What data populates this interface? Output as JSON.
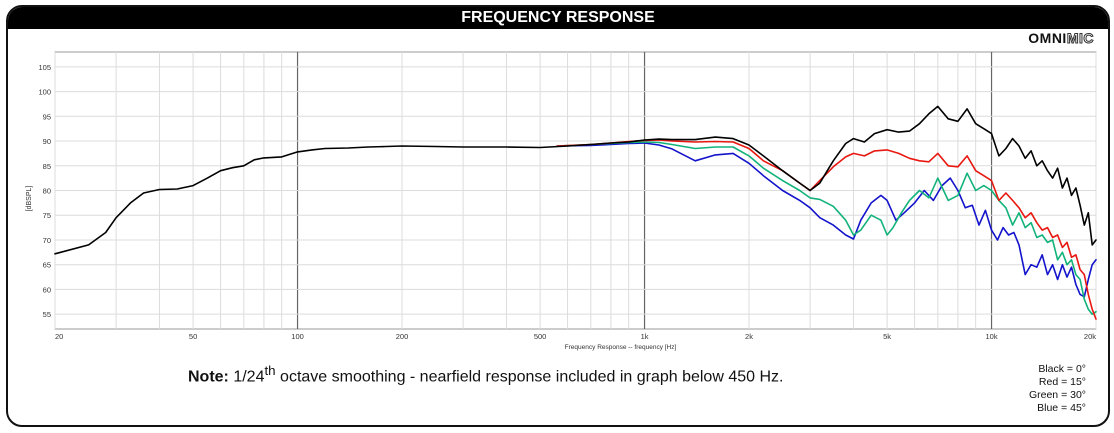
{
  "header": {
    "title": "FREQUENCY RESPONSE"
  },
  "logo": {
    "solid": "OMNI",
    "outline": "MIC"
  },
  "note": {
    "label": "Note:",
    "text_pre": " 1/24",
    "sup": "th",
    "text_post": " octave smoothing - nearfield response included in graph below 450 Hz."
  },
  "legend": [
    {
      "text": "Black = 0°",
      "color": "#000000"
    },
    {
      "text": "Red = 15°",
      "color": "#e8170f"
    },
    {
      "text": "Green = 30°",
      "color": "#12b37a"
    },
    {
      "text": "Blue = 45°",
      "color": "#1313cc"
    }
  ],
  "chart_data": {
    "type": "line",
    "title": "FREQUENCY RESPONSE",
    "xlabel": "Frequency Response -- frequency [Hz]",
    "ylabel": "[dBSPL]",
    "x_scale": "log",
    "xlim": [
      20,
      20000
    ],
    "ylim": [
      52,
      108
    ],
    "x_ticks": [
      {
        "value": 20,
        "label": "20"
      },
      {
        "value": 50,
        "label": "50"
      },
      {
        "value": 100,
        "label": "100"
      },
      {
        "value": 200,
        "label": "200"
      },
      {
        "value": 500,
        "label": "500"
      },
      {
        "value": 1000,
        "label": "1k"
      },
      {
        "value": 2000,
        "label": "2k"
      },
      {
        "value": 5000,
        "label": "5k"
      },
      {
        "value": 10000,
        "label": "10k"
      },
      {
        "value": 20000,
        "label": "20k"
      }
    ],
    "y_ticks": [
      55,
      60,
      65,
      70,
      75,
      80,
      85,
      90,
      95,
      100,
      105
    ],
    "grid": true,
    "series": [
      {
        "name": "Black = 0°",
        "color": "#000000",
        "x": [
          20,
          25,
          28,
          30,
          33,
          36,
          40,
          45,
          50,
          55,
          60,
          65,
          70,
          75,
          80,
          90,
          100,
          110,
          120,
          140,
          160,
          180,
          200,
          250,
          300,
          400,
          500,
          600,
          700,
          800,
          900,
          1000,
          1100,
          1200,
          1400,
          1600,
          1800,
          2000,
          2200,
          2500,
          2800,
          3000,
          3200,
          3500,
          3800,
          4000,
          4300,
          4600,
          5000,
          5400,
          5800,
          6200,
          6600,
          7000,
          7500,
          8000,
          8500,
          9000,
          9500,
          10000,
          10500,
          11000,
          11500,
          12000,
          12500,
          13000,
          13500,
          14000,
          14500,
          15000,
          15500,
          16000,
          16500,
          17000,
          17500,
          18000,
          18500,
          19000,
          19500,
          20000
        ],
        "values": [
          67.2,
          69.0,
          71.5,
          74.5,
          77.5,
          79.5,
          80.2,
          80.3,
          81.0,
          82.5,
          84.0,
          84.6,
          85.0,
          86.2,
          86.6,
          86.8,
          87.8,
          88.2,
          88.5,
          88.6,
          88.8,
          88.9,
          89.0,
          88.9,
          88.8,
          88.8,
          88.7,
          89.0,
          89.3,
          89.6,
          89.8,
          90.2,
          90.4,
          90.3,
          90.3,
          90.8,
          90.5,
          89.2,
          87.0,
          84.0,
          81.5,
          80.0,
          81.5,
          86.0,
          89.5,
          90.5,
          89.8,
          91.5,
          92.3,
          91.8,
          92.0,
          93.5,
          95.5,
          97.0,
          94.5,
          94.0,
          96.5,
          93.5,
          92.5,
          91.5,
          87.0,
          88.5,
          90.5,
          89.0,
          86.5,
          88.0,
          85.0,
          86.0,
          84.0,
          82.5,
          84.5,
          80.5,
          82.5,
          79.0,
          80.5,
          77.0,
          73.0,
          75.5,
          69.0,
          70.0
        ]
      },
      {
        "name": "Red = 15°",
        "color": "#e8170f",
        "x": [
          560,
          700,
          800,
          900,
          1000,
          1100,
          1200,
          1400,
          1600,
          1800,
          2000,
          2200,
          2500,
          2800,
          3000,
          3200,
          3500,
          3800,
          4000,
          4300,
          4600,
          5000,
          5400,
          5800,
          6200,
          6600,
          7000,
          7500,
          8000,
          8500,
          9000,
          9500,
          10000,
          10500,
          11000,
          11500,
          12000,
          12500,
          13000,
          13500,
          14000,
          14500,
          15000,
          15500,
          16000,
          16500,
          17000,
          17500,
          18000,
          18500,
          19000,
          19500,
          20000
        ],
        "values": [
          89.0,
          89.3,
          89.6,
          89.9,
          90.1,
          90.2,
          90.0,
          89.8,
          89.9,
          89.8,
          88.5,
          86.0,
          84.0,
          81.5,
          80.0,
          82.0,
          84.8,
          86.8,
          87.5,
          87.0,
          88.0,
          88.2,
          87.5,
          86.5,
          86.0,
          85.8,
          87.5,
          85.0,
          84.8,
          87.0,
          84.0,
          83.0,
          82.0,
          78.0,
          79.5,
          78.0,
          76.5,
          74.5,
          75.5,
          73.5,
          72.0,
          72.5,
          70.5,
          71.0,
          68.5,
          69.5,
          66.5,
          67.0,
          64.0,
          63.0,
          59.0,
          56.0,
          54.0
        ]
      },
      {
        "name": "Green = 30°",
        "color": "#12b37a",
        "x": [
          560,
          700,
          800,
          900,
          1000,
          1100,
          1200,
          1400,
          1600,
          1800,
          2000,
          2200,
          2500,
          2800,
          3000,
          3200,
          3500,
          3800,
          4000,
          4200,
          4500,
          4800,
          5000,
          5200,
          5500,
          5800,
          6200,
          6600,
          7000,
          7500,
          8000,
          8500,
          9000,
          9500,
          10000,
          10500,
          11000,
          11500,
          12000,
          12500,
          13000,
          13500,
          14000,
          14500,
          15000,
          15500,
          16000,
          16500,
          17000,
          17500,
          18000,
          18500,
          19000,
          19500,
          20000
        ],
        "values": [
          89.0,
          89.3,
          89.5,
          89.7,
          89.8,
          89.7,
          89.3,
          88.5,
          88.8,
          88.8,
          87.0,
          84.5,
          82.0,
          80.0,
          78.5,
          78.2,
          76.8,
          74.0,
          71.0,
          72.0,
          75.0,
          74.0,
          71.0,
          72.5,
          75.5,
          78.0,
          80.0,
          78.5,
          82.5,
          78.0,
          79.0,
          83.5,
          80.0,
          81.0,
          80.0,
          78.0,
          76.5,
          73.0,
          75.5,
          72.5,
          73.5,
          70.5,
          71.0,
          69.5,
          70.0,
          66.0,
          67.5,
          65.0,
          66.0,
          63.0,
          62.0,
          58.0,
          56.0,
          55.0,
          55.5
        ]
      },
      {
        "name": "Blue = 45°",
        "color": "#1313cc",
        "x": [
          560,
          700,
          800,
          900,
          1000,
          1100,
          1200,
          1400,
          1600,
          1800,
          2000,
          2200,
          2500,
          2800,
          3000,
          3200,
          3500,
          3800,
          4000,
          4200,
          4500,
          4800,
          5000,
          5300,
          5600,
          6000,
          6400,
          6800,
          7200,
          7600,
          8000,
          8400,
          8800,
          9200,
          9600,
          10000,
          10400,
          10800,
          11200,
          11600,
          12000,
          12500,
          13000,
          13500,
          14000,
          14500,
          15000,
          15500,
          16000,
          16500,
          17000,
          17500,
          18000,
          18500,
          19000,
          19500,
          20000
        ],
        "values": [
          89.0,
          89.1,
          89.3,
          89.5,
          89.6,
          89.2,
          88.4,
          86.0,
          87.2,
          87.5,
          85.5,
          83.0,
          80.0,
          78.0,
          76.5,
          74.5,
          73.0,
          71.0,
          70.2,
          74.0,
          77.5,
          79.0,
          78.0,
          74.0,
          75.5,
          77.5,
          80.0,
          78.0,
          81.0,
          82.5,
          80.0,
          76.5,
          77.0,
          73.0,
          76.0,
          72.0,
          70.0,
          72.5,
          71.0,
          71.5,
          69.0,
          63.0,
          65.0,
          64.5,
          67.0,
          63.0,
          65.0,
          62.0,
          65.0,
          62.5,
          64.5,
          61.0,
          59.0,
          58.5,
          62.0,
          65.0,
          66.0
        ]
      }
    ]
  }
}
